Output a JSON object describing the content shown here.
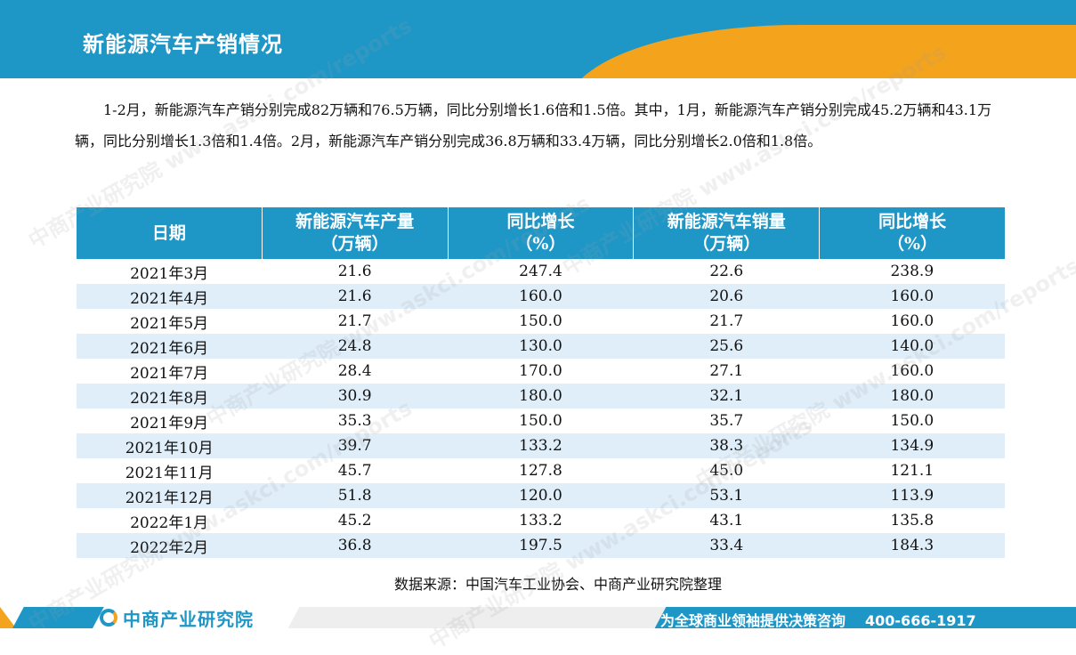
{
  "header": {
    "title": "新能源汽车产销情况"
  },
  "paragraph": "1-2月，新能源汽车产销分别完成82万辆和76.5万辆，同比分别增长1.6倍和1.5倍。其中，1月，新能源汽车产销分别完成45.2万辆和43.1万辆，同比分别增长1.3倍和1.4倍。2月，新能源汽车产销分别完成36.8万辆和33.4万辆，同比分别增长2.0倍和1.8倍。",
  "table": {
    "headers": [
      {
        "line1": "日期",
        "line2": ""
      },
      {
        "line1": "新能源汽车产量",
        "line2": "（万辆）"
      },
      {
        "line1": "同比增长",
        "line2": "（%）"
      },
      {
        "line1": "新能源汽车销量",
        "line2": "（万辆）"
      },
      {
        "line1": "同比增长",
        "line2": "（%）"
      }
    ],
    "rows": [
      [
        "2021年3月",
        "21.6",
        "247.4",
        "22.6",
        "238.9"
      ],
      [
        "2021年4月",
        "21.6",
        "160.0",
        "20.6",
        "160.0"
      ],
      [
        "2021年5月",
        "21.7",
        "150.0",
        "21.7",
        "160.0"
      ],
      [
        "2021年6月",
        "24.8",
        "130.0",
        "25.6",
        "140.0"
      ],
      [
        "2021年7月",
        "28.4",
        "170.0",
        "27.1",
        "160.0"
      ],
      [
        "2021年8月",
        "30.9",
        "180.0",
        "32.1",
        "180.0"
      ],
      [
        "2021年9月",
        "35.3",
        "150.0",
        "35.7",
        "150.0"
      ],
      [
        "2021年10月",
        "39.7",
        "133.2",
        "38.3",
        "134.9"
      ],
      [
        "2021年11月",
        "45.7",
        "127.8",
        "45.0",
        "121.1"
      ],
      [
        "2021年12月",
        "51.8",
        "120.0",
        "53.1",
        "113.9"
      ],
      [
        "2022年1月",
        "45.2",
        "133.2",
        "43.1",
        "135.8"
      ],
      [
        "2022年2月",
        "36.8",
        "197.5",
        "33.4",
        "184.3"
      ]
    ]
  },
  "source": "数据来源：中国汽车工业协会、中商产业研究院整理",
  "footer": {
    "logo_text": "中商产业研究院",
    "slogan": "为全球商业领袖提供决策咨询",
    "phone": "400-666-1917"
  },
  "watermark": {
    "text": "中商产业研究院 www.askci.com/reports"
  },
  "colors": {
    "brand_blue": "#1e97c7",
    "brand_orange": "#f4a31c",
    "row_alt": "#dfeef9"
  }
}
